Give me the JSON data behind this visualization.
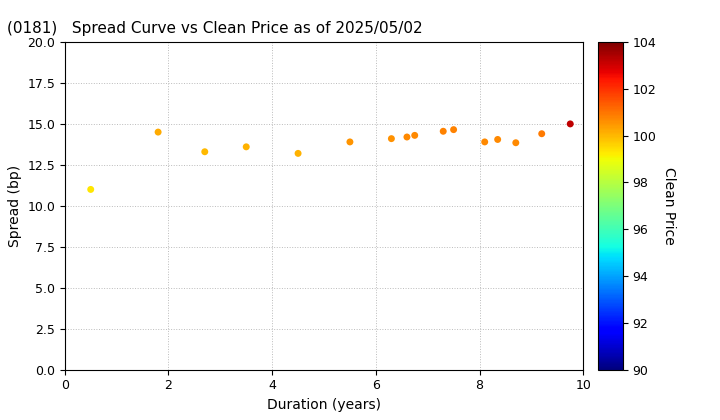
{
  "title": "(0181)   Spread Curve vs Clean Price as of 2025/05/02",
  "xlabel": "Duration (years)",
  "ylabel": "Spread (bp)",
  "colorbar_label": "Clean Price",
  "xlim": [
    0,
    10
  ],
  "ylim": [
    0.0,
    20.0
  ],
  "cmap_min": 90,
  "cmap_max": 104,
  "points": [
    {
      "duration": 0.5,
      "spread": 11.0,
      "price": 99.3
    },
    {
      "duration": 1.8,
      "spread": 14.5,
      "price": 100.2
    },
    {
      "duration": 2.7,
      "spread": 13.3,
      "price": 100.0
    },
    {
      "duration": 3.5,
      "spread": 13.6,
      "price": 100.1
    },
    {
      "duration": 4.5,
      "spread": 13.2,
      "price": 100.1
    },
    {
      "duration": 5.5,
      "spread": 13.9,
      "price": 100.5
    },
    {
      "duration": 6.3,
      "spread": 14.1,
      "price": 100.6
    },
    {
      "duration": 6.6,
      "spread": 14.2,
      "price": 100.7
    },
    {
      "duration": 6.75,
      "spread": 14.3,
      "price": 100.7
    },
    {
      "duration": 7.3,
      "spread": 14.55,
      "price": 100.8
    },
    {
      "duration": 7.5,
      "spread": 14.65,
      "price": 100.8
    },
    {
      "duration": 8.1,
      "spread": 13.9,
      "price": 100.7
    },
    {
      "duration": 8.35,
      "spread": 14.05,
      "price": 100.7
    },
    {
      "duration": 8.7,
      "spread": 13.85,
      "price": 100.7
    },
    {
      "duration": 9.2,
      "spread": 14.4,
      "price": 100.9
    },
    {
      "duration": 9.75,
      "spread": 15.0,
      "price": 103.2
    }
  ],
  "background_color": "#ffffff",
  "grid_color": "#bbbbbb",
  "title_fontsize": 11,
  "axis_fontsize": 10,
  "marker_size": 25
}
